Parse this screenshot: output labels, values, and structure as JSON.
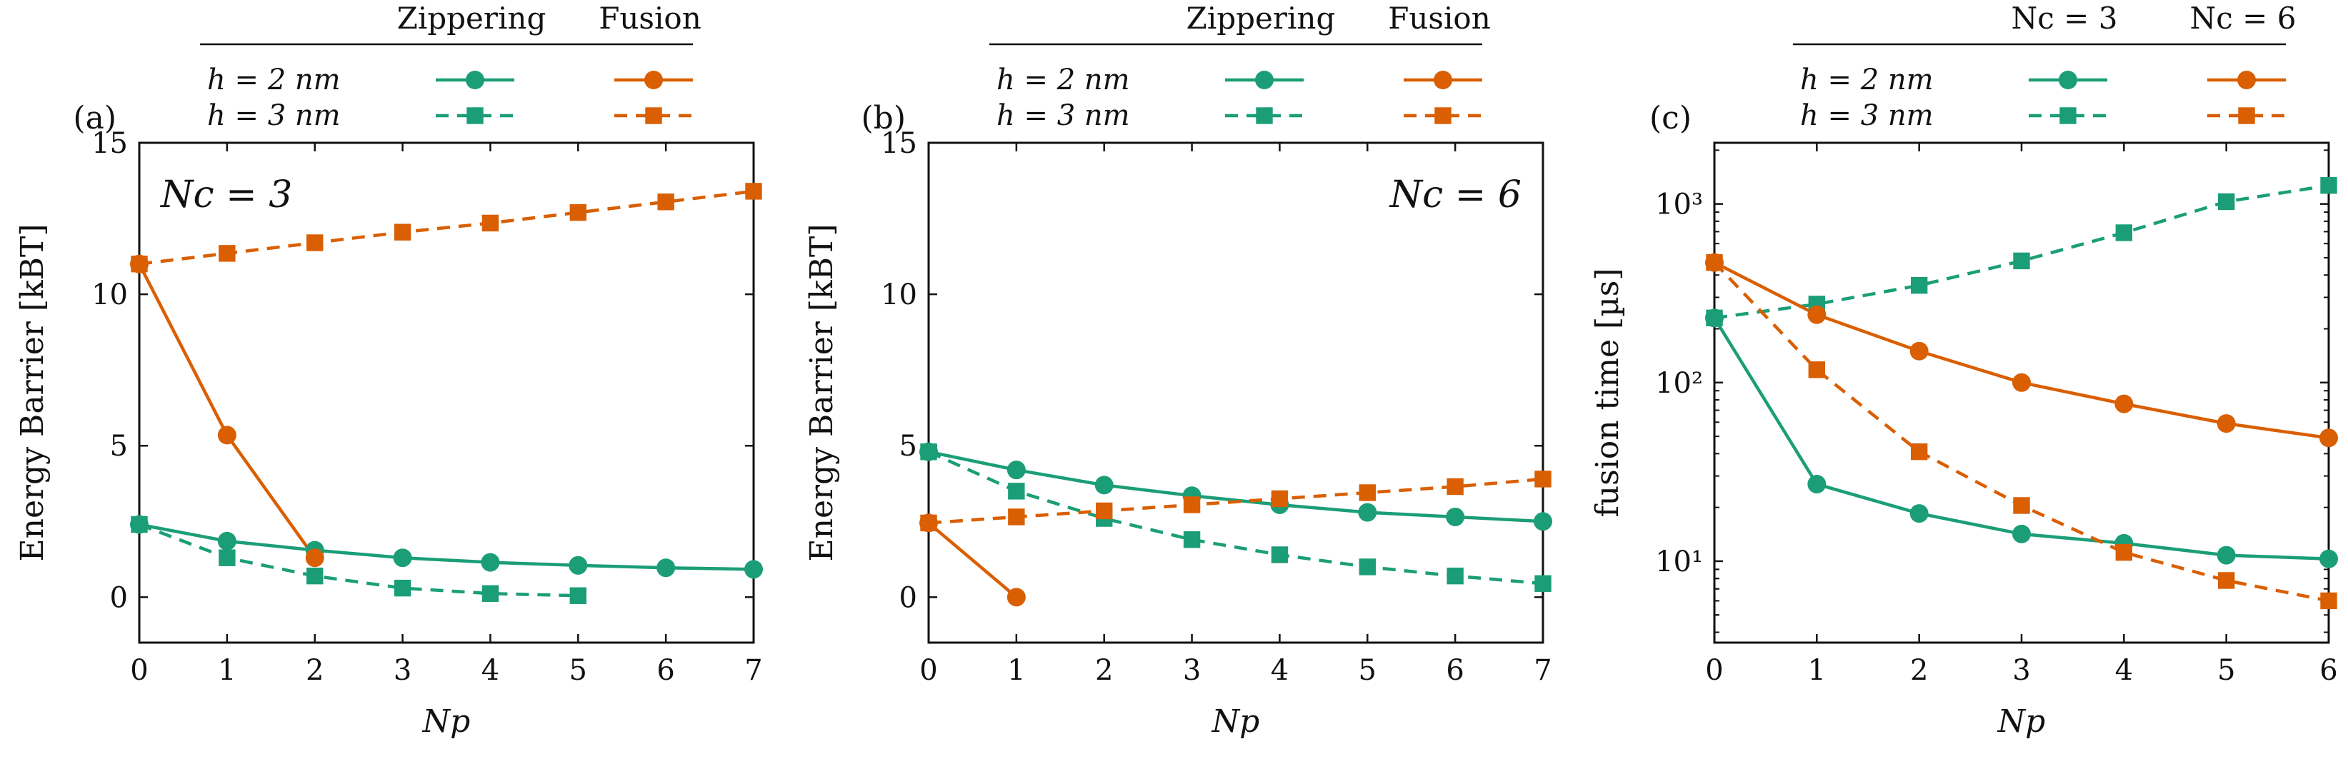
{
  "colors": {
    "zippering": "#1b9e77",
    "fusion": "#d95f02",
    "axis": "#111111"
  },
  "legend_rows": {
    "h2": "h = 2 nm",
    "h3": "h = 3 nm"
  },
  "chart_data": [
    {
      "type": "line",
      "panel_label": "(a)",
      "inset_label": "Nc = 3",
      "legend_headers": [
        "Zippering",
        "Fusion"
      ],
      "xlabel": "Np",
      "ylabel": "Energy Barrier [kBT]",
      "xlim": [
        0,
        7
      ],
      "ylim": [
        -1.5,
        15
      ],
      "xticks": [
        0,
        1,
        2,
        3,
        4,
        5,
        6,
        7
      ],
      "yticks": [
        0,
        5,
        10,
        15
      ],
      "yscale": "linear",
      "series": [
        {
          "name": "Zippering, h = 2 nm",
          "color_key": "zippering",
          "dash": false,
          "marker": "circle",
          "x": [
            0,
            1,
            2,
            3,
            4,
            5,
            6,
            7
          ],
          "values": [
            2.4,
            1.85,
            1.55,
            1.3,
            1.15,
            1.05,
            0.97,
            0.92
          ]
        },
        {
          "name": "Zippering, h = 3 nm",
          "color_key": "zippering",
          "dash": true,
          "marker": "square",
          "x": [
            0,
            1,
            2,
            3,
            4,
            5
          ],
          "values": [
            2.4,
            1.3,
            0.7,
            0.3,
            0.12,
            0.05
          ]
        },
        {
          "name": "Fusion, h = 2 nm",
          "color_key": "fusion",
          "dash": false,
          "marker": "circle",
          "x": [
            0,
            1,
            2
          ],
          "values": [
            11.0,
            5.35,
            1.3
          ]
        },
        {
          "name": "Fusion, h = 3 nm",
          "color_key": "fusion",
          "dash": true,
          "marker": "square",
          "x": [
            0,
            1,
            2,
            3,
            4,
            5,
            6,
            7
          ],
          "values": [
            11.0,
            11.35,
            11.7,
            12.05,
            12.35,
            12.7,
            13.05,
            13.4
          ]
        }
      ]
    },
    {
      "type": "line",
      "panel_label": "(b)",
      "inset_label": "Nc = 6",
      "legend_headers": [
        "Zippering",
        "Fusion"
      ],
      "xlabel": "Np",
      "ylabel": "Energy Barrier [kBT]",
      "xlim": [
        0,
        7
      ],
      "ylim": [
        -1.5,
        15
      ],
      "xticks": [
        0,
        1,
        2,
        3,
        4,
        5,
        6,
        7
      ],
      "yticks": [
        0,
        5,
        10,
        15
      ],
      "yscale": "linear",
      "series": [
        {
          "name": "Zippering, h = 2 nm",
          "color_key": "zippering",
          "dash": false,
          "marker": "circle",
          "x": [
            0,
            1,
            2,
            3,
            4,
            5,
            6,
            7
          ],
          "values": [
            4.8,
            4.2,
            3.7,
            3.35,
            3.05,
            2.8,
            2.65,
            2.5
          ]
        },
        {
          "name": "Zippering, h = 3 nm",
          "color_key": "zippering",
          "dash": true,
          "marker": "square",
          "x": [
            0,
            1,
            2,
            3,
            4,
            5,
            6,
            7
          ],
          "values": [
            4.8,
            3.5,
            2.6,
            1.9,
            1.4,
            1.0,
            0.7,
            0.45
          ]
        },
        {
          "name": "Fusion, h = 2 nm",
          "color_key": "fusion",
          "dash": false,
          "marker": "circle",
          "x": [
            0,
            1
          ],
          "values": [
            2.45,
            0.0
          ]
        },
        {
          "name": "Fusion, h = 3 nm",
          "color_key": "fusion",
          "dash": true,
          "marker": "square",
          "x": [
            0,
            1,
            2,
            3,
            4,
            5,
            6,
            7
          ],
          "values": [
            2.45,
            2.65,
            2.85,
            3.05,
            3.25,
            3.45,
            3.65,
            3.9
          ]
        }
      ]
    },
    {
      "type": "line",
      "panel_label": "(c)",
      "inset_label": "",
      "legend_headers": [
        "Nc = 3",
        "Nc = 6"
      ],
      "xlabel": "Np",
      "ylabel": "fusion time [µs]",
      "xlim": [
        0,
        6
      ],
      "ylim": [
        3.5,
        2200
      ],
      "xticks": [
        0,
        1,
        2,
        3,
        4,
        5,
        6
      ],
      "yticks": [
        10,
        100,
        1000
      ],
      "ytick_labels": [
        "10¹",
        "10²",
        "10³"
      ],
      "yscale": "log",
      "series": [
        {
          "name": "Nc = 3, h = 2 nm",
          "color_key": "zippering",
          "dash": false,
          "marker": "circle",
          "x": [
            0,
            1,
            2,
            3,
            4,
            5,
            6
          ],
          "values": [
            230,
            27,
            18.5,
            14.2,
            12.6,
            10.8,
            10.3
          ]
        },
        {
          "name": "Nc = 3, h = 3 nm",
          "color_key": "zippering",
          "dash": true,
          "marker": "square",
          "x": [
            0,
            1,
            2,
            3,
            4,
            5,
            6
          ],
          "values": [
            230,
            275,
            350,
            480,
            690,
            1030,
            1270
          ]
        },
        {
          "name": "Nc = 6, h = 2 nm",
          "color_key": "fusion",
          "dash": false,
          "marker": "circle",
          "x": [
            0,
            1,
            2,
            3,
            4,
            5,
            6
          ],
          "values": [
            470,
            240,
            150,
            100,
            76,
            59,
            49
          ]
        },
        {
          "name": "Nc = 6, h = 3 nm",
          "color_key": "fusion",
          "dash": true,
          "marker": "square",
          "x": [
            0,
            1,
            2,
            3,
            4,
            5,
            6
          ],
          "values": [
            470,
            118,
            41,
            20.5,
            11.2,
            7.8,
            6.0
          ]
        }
      ]
    }
  ]
}
